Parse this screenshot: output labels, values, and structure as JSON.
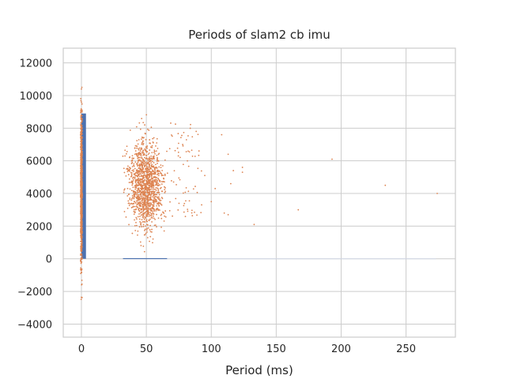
{
  "chart_data": {
    "type": "scatter",
    "title": "Periods of slam2 cb imu",
    "xlabel": "Period (ms)",
    "ylabel": "",
    "xlim": [
      -14,
      288
    ],
    "ylim": [
      -4800,
      12900
    ],
    "xticks": [
      0,
      50,
      100,
      150,
      200,
      250
    ],
    "yticks": [
      -4000,
      -2000,
      0,
      2000,
      4000,
      6000,
      8000,
      10000,
      12000
    ],
    "grid": true,
    "legend": "none",
    "colors": {
      "histogram": "#4c72b0",
      "scatter": "#dd8452",
      "grid": "#cccccc",
      "frame": "#cccccc"
    },
    "histogram": {
      "bin_edges": [
        0,
        3.5
      ],
      "counts": [
        8900
      ],
      "tail_bins": [
        {
          "x_start": 32,
          "x_end": 66,
          "count": 40
        }
      ],
      "trailing_range": [
        66,
        273
      ]
    },
    "scatter": {
      "spike_x": 0,
      "spike_y_range": [
        -4200,
        12100
      ],
      "cluster": {
        "x_range": [
          28,
          90
        ],
        "y_range": [
          -2000,
          10600
        ],
        "peak": [
          50,
          4500
        ]
      },
      "outliers": [
        {
          "x": 95,
          "y": 5100
        },
        {
          "x": 100,
          "y": 3500
        },
        {
          "x": 103,
          "y": 4300
        },
        {
          "x": 108,
          "y": 7600
        },
        {
          "x": 110,
          "y": 2800
        },
        {
          "x": 113,
          "y": 6400
        },
        {
          "x": 113,
          "y": 2700
        },
        {
          "x": 115,
          "y": 4600
        },
        {
          "x": 117,
          "y": 5400
        },
        {
          "x": 124,
          "y": 5600
        },
        {
          "x": 124,
          "y": 5300
        },
        {
          "x": 133,
          "y": 2100
        },
        {
          "x": 167,
          "y": 3000
        },
        {
          "x": 193,
          "y": 6100
        },
        {
          "x": 234,
          "y": 4500
        },
        {
          "x": 274,
          "y": 4000
        }
      ]
    }
  }
}
